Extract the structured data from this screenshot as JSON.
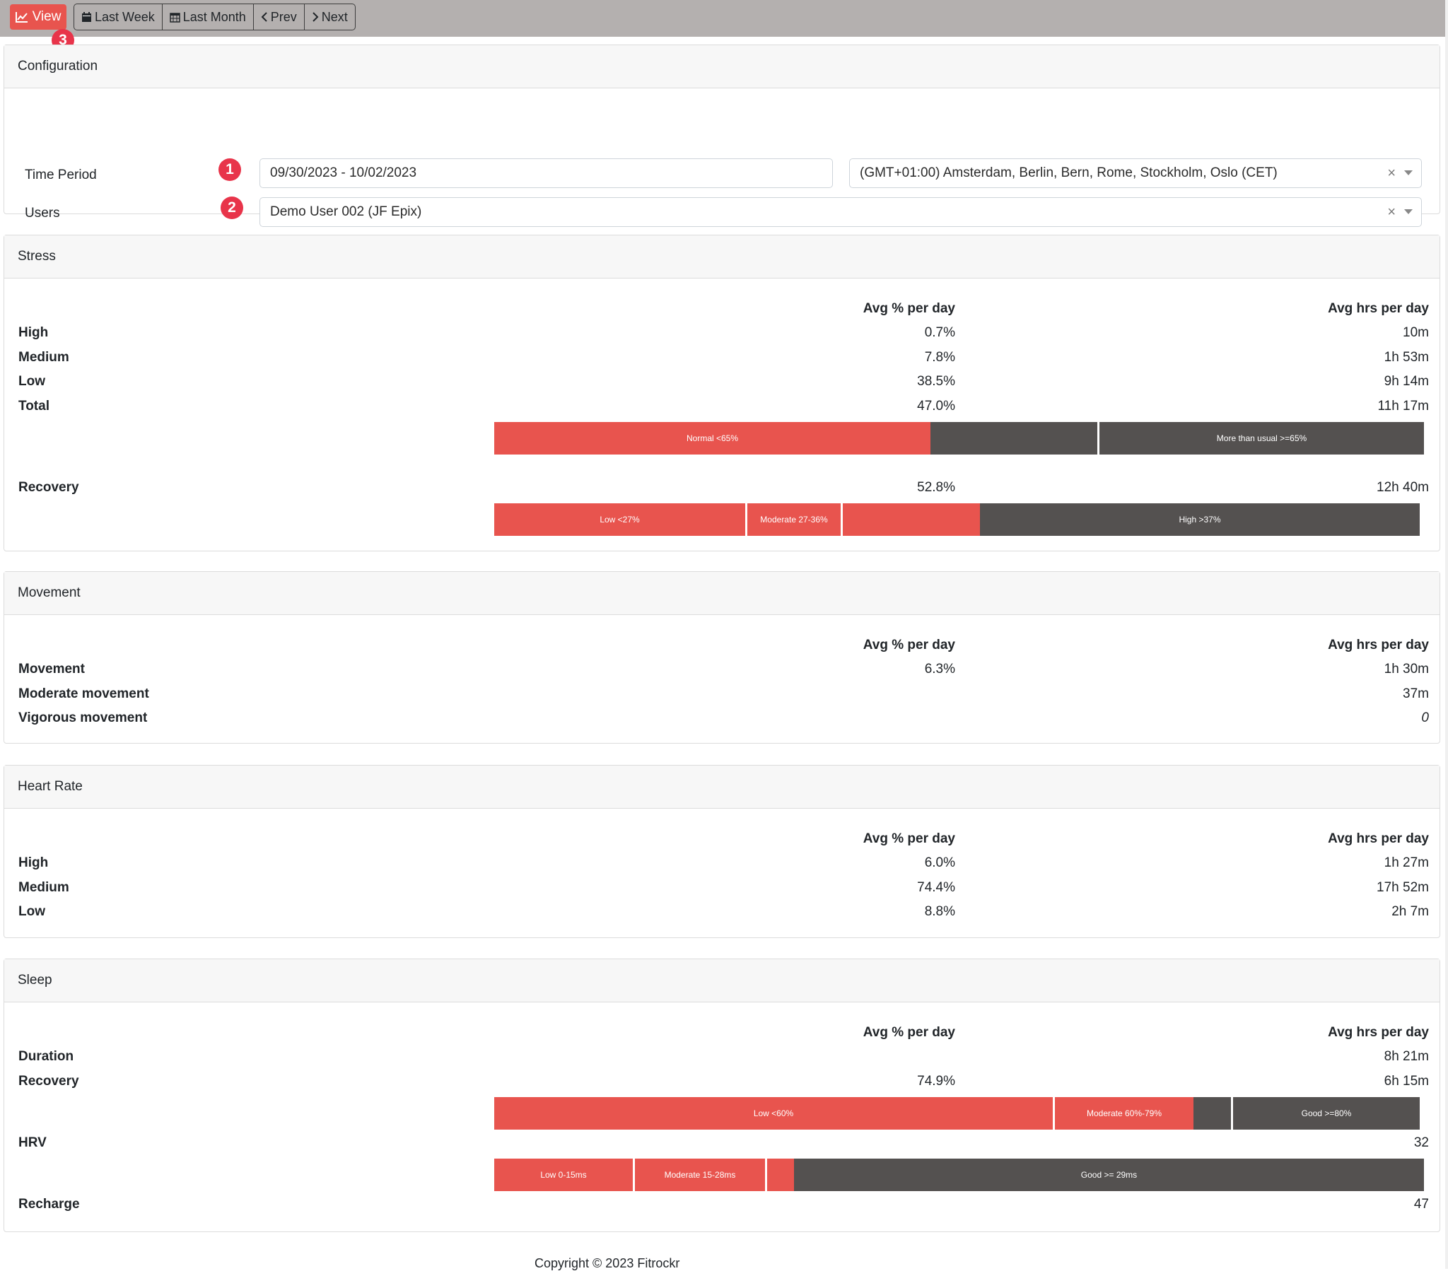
{
  "toolbar": {
    "view_label": "View",
    "last_week_label": "Last Week",
    "last_month_label": "Last Month",
    "prev_label": "Prev",
    "next_label": "Next",
    "badge": "3"
  },
  "configuration": {
    "title": "Configuration",
    "time_period_label": "Time Period",
    "time_period_badge": "1",
    "time_period_value": "09/30/2023 - 10/02/2023",
    "timezone_value": "(GMT+01:00) Amsterdam, Berlin, Bern, Rome, Stockholm, Oslo (CET)",
    "users_label": "Users",
    "users_badge": "2",
    "users_value": "Demo User 002 (JF Epix)"
  },
  "columns": {
    "pct": "Avg % per day",
    "hrs": "Avg hrs per day"
  },
  "stress": {
    "title": "Stress",
    "rows": [
      {
        "label": "High",
        "pct": "0.7%",
        "hrs": "10m"
      },
      {
        "label": "Medium",
        "pct": "7.8%",
        "hrs": "1h 53m"
      },
      {
        "label": "Low",
        "pct": "38.5%",
        "hrs": "9h 14m"
      },
      {
        "label": "Total",
        "pct": "47.0%",
        "hrs": "11h 17m"
      }
    ],
    "bar": {
      "normal_label": "Normal <65%",
      "more_label": "More than usual >=65%",
      "value_pct": 47.0,
      "threshold_pct": 65
    },
    "recovery": {
      "label": "Recovery",
      "pct": "52.8%",
      "hrs": "12h 40m"
    },
    "recovery_bar": {
      "low_label": "Low <27%",
      "moderate_label": "Moderate 27-36%",
      "high_label": "High >37%",
      "value_pct": 52.8
    }
  },
  "movement": {
    "title": "Movement",
    "rows": [
      {
        "label": "Movement",
        "pct": "6.3%",
        "hrs": "1h 30m"
      },
      {
        "label": "Moderate movement",
        "pct": "",
        "hrs": "37m"
      },
      {
        "label": "Vigorous movement",
        "pct": "",
        "hrs": "0"
      }
    ]
  },
  "heart_rate": {
    "title": "Heart Rate",
    "rows": [
      {
        "label": "High",
        "pct": "6.0%",
        "hrs": "1h 27m"
      },
      {
        "label": "Medium",
        "pct": "74.4%",
        "hrs": "17h 52m"
      },
      {
        "label": "Low",
        "pct": "8.8%",
        "hrs": "2h 7m"
      }
    ]
  },
  "sleep": {
    "title": "Sleep",
    "duration": {
      "label": "Duration",
      "pct": "",
      "hrs": "8h 21m"
    },
    "recovery": {
      "label": "Recovery",
      "pct": "74.9%",
      "hrs": "6h 15m"
    },
    "recovery_bar": {
      "low_label": "Low <60%",
      "moderate_label": "Moderate 60%-79%",
      "good_label": "Good >=80%",
      "value_pct": 74.9
    },
    "hrv": {
      "label": "HRV",
      "value": "32"
    },
    "hrv_bar": {
      "low_label": "Low 0-15ms",
      "moderate_label": "Moderate 15-28ms",
      "good_label": "Good >= 29ms",
      "value_ms": 32
    },
    "recharge": {
      "label": "Recharge",
      "value": "47"
    }
  },
  "footer": {
    "copyright": "Copyright © 2023 Fitrockr"
  },
  "colors": {
    "accent": "#e8544e",
    "dark": "#545150",
    "badge": "#e8344a"
  }
}
